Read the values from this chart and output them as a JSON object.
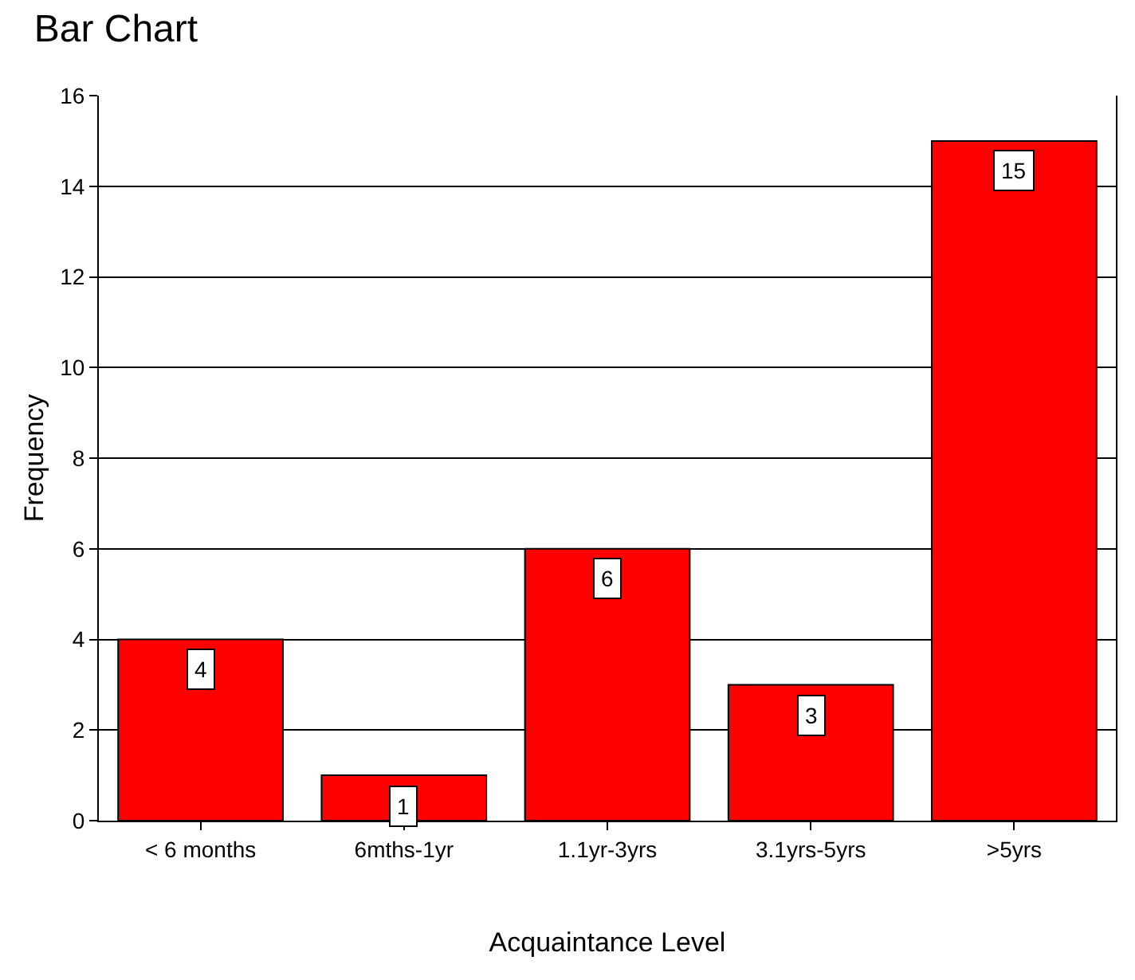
{
  "chart_data": {
    "type": "bar",
    "title": "Bar Chart",
    "xlabel": "Acquaintance Level",
    "ylabel": "Frequency",
    "categories": [
      "< 6 months",
      "6mths-1yr",
      "1.1yr-3yrs",
      "3.1yrs-5yrs",
      ">5yrs"
    ],
    "values": [
      4,
      1,
      6,
      3,
      15
    ],
    "color": "#ff0000",
    "ylim": [
      0,
      16
    ],
    "yticks": [
      0,
      2,
      4,
      6,
      8,
      10,
      12,
      14,
      16
    ],
    "grid": "y",
    "data_labels": true
  }
}
